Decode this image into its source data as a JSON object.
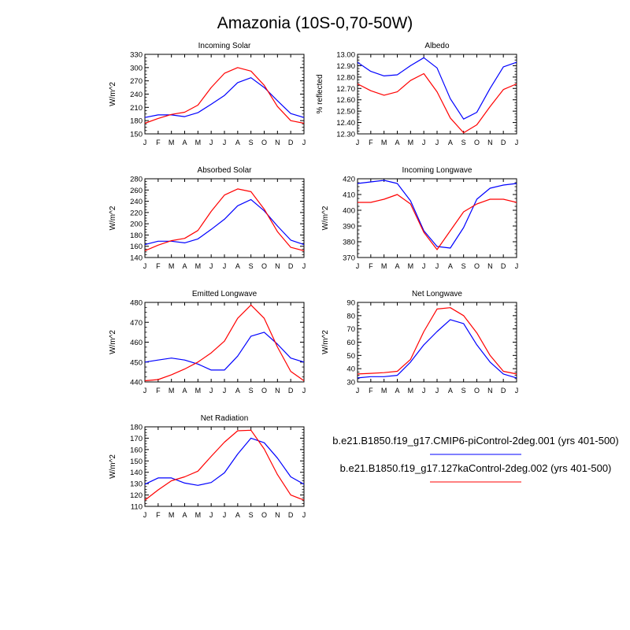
{
  "figure": {
    "title": "Amazonia (10S-0,70-50W)"
  },
  "colors": {
    "control": "#0000ff",
    "experiment": "#ff0000"
  },
  "legend": [
    {
      "label": "b.e21.B1850.f19_g17.CMIP6-piControl-2deg.001 (yrs 401-500)",
      "color_key": "control"
    },
    {
      "label": "b.e21.B1850.f19_g17.127kaControl-2deg.002 (yrs 401-500)",
      "color_key": "experiment"
    }
  ],
  "chart_data": [
    {
      "type": "line",
      "title": "Incoming Solar",
      "ylabel": "W/m^2",
      "categories": [
        "J",
        "F",
        "M",
        "A",
        "M",
        "J",
        "J",
        "A",
        "S",
        "O",
        "N",
        "D",
        "J"
      ],
      "ylim": [
        150,
        330
      ],
      "yticks": [
        "150",
        "180",
        "210",
        "240",
        "270",
        "300",
        "330"
      ],
      "series": [
        {
          "name": "control",
          "values": [
            187,
            193,
            193,
            189,
            198,
            217,
            237,
            266,
            277,
            255,
            225,
            196,
            187
          ]
        },
        {
          "name": "experiment",
          "values": [
            174,
            185,
            194,
            199,
            215,
            255,
            287,
            300,
            292,
            260,
            212,
            180,
            174
          ]
        }
      ]
    },
    {
      "type": "line",
      "title": "Albedo",
      "ylabel": "% reflected",
      "categories": [
        "J",
        "F",
        "M",
        "A",
        "M",
        "J",
        "J",
        "A",
        "S",
        "O",
        "N",
        "D",
        "J"
      ],
      "ylim": [
        12.3,
        13.0
      ],
      "yticks": [
        "12.30",
        "12.40",
        "12.50",
        "12.60",
        "12.70",
        "12.80",
        "12.90",
        "13.00"
      ],
      "series": [
        {
          "name": "control",
          "values": [
            12.93,
            12.85,
            12.81,
            12.82,
            12.9,
            12.97,
            12.88,
            12.61,
            12.43,
            12.49,
            12.7,
            12.89,
            12.93
          ]
        },
        {
          "name": "experiment",
          "values": [
            12.74,
            12.68,
            12.64,
            12.67,
            12.77,
            12.83,
            12.67,
            12.44,
            12.31,
            12.38,
            12.54,
            12.69,
            12.74
          ]
        }
      ]
    },
    {
      "type": "line",
      "title": "Absorbed Solar",
      "ylabel": "W/m^2",
      "categories": [
        "J",
        "F",
        "M",
        "A",
        "M",
        "J",
        "J",
        "A",
        "S",
        "O",
        "N",
        "D",
        "J"
      ],
      "ylim": [
        140,
        280
      ],
      "yticks": [
        "140",
        "160",
        "180",
        "200",
        "220",
        "240",
        "260",
        "280"
      ],
      "series": [
        {
          "name": "control",
          "values": [
            163,
            169,
            169,
            166,
            173,
            190,
            208,
            232,
            243,
            223,
            196,
            171,
            163
          ]
        },
        {
          "name": "experiment",
          "values": [
            152,
            162,
            170,
            174,
            188,
            222,
            251,
            262,
            257,
            226,
            186,
            158,
            152
          ]
        }
      ]
    },
    {
      "type": "line",
      "title": "Incoming Longwave",
      "ylabel": "W/m^2",
      "categories": [
        "J",
        "F",
        "M",
        "A",
        "M",
        "J",
        "J",
        "A",
        "S",
        "O",
        "N",
        "D",
        "J"
      ],
      "ylim": [
        370,
        420
      ],
      "yticks": [
        "370",
        "380",
        "390",
        "400",
        "410",
        "420"
      ],
      "series": [
        {
          "name": "control",
          "values": [
            417,
            418,
            419,
            417,
            406,
            387,
            377,
            376,
            389,
            407,
            414,
            416,
            417
          ]
        },
        {
          "name": "experiment",
          "values": [
            405,
            405,
            407,
            410,
            404,
            386,
            375,
            387,
            399,
            404,
            407,
            407,
            405
          ]
        }
      ]
    },
    {
      "type": "line",
      "title": "Emitted Longwave",
      "ylabel": "W/m^2",
      "categories": [
        "J",
        "F",
        "M",
        "A",
        "M",
        "J",
        "J",
        "A",
        "S",
        "O",
        "N",
        "D",
        "J"
      ],
      "ylim": [
        440,
        480
      ],
      "yticks": [
        "440",
        "450",
        "460",
        "470",
        "480"
      ],
      "series": [
        {
          "name": "control",
          "values": [
            450,
            451,
            452,
            451,
            449,
            446,
            446,
            453,
            463,
            465,
            459,
            452,
            450
          ]
        },
        {
          "name": "experiment",
          "values": [
            440.6,
            441.2,
            443.6,
            446.5,
            450.0,
            454.6,
            460.5,
            472.0,
            478.7,
            472.0,
            457.6,
            445.3,
            440.6
          ]
        }
      ]
    },
    {
      "type": "line",
      "title": "Net Longwave",
      "ylabel": "W/m^2",
      "categories": [
        "J",
        "F",
        "M",
        "A",
        "M",
        "J",
        "J",
        "A",
        "S",
        "O",
        "N",
        "D",
        "J"
      ],
      "ylim": [
        30,
        90
      ],
      "yticks": [
        "30",
        "40",
        "50",
        "60",
        "70",
        "80",
        "90"
      ],
      "series": [
        {
          "name": "control",
          "values": [
            33,
            34,
            34,
            35,
            45,
            58,
            68,
            77,
            74,
            58,
            45,
            36,
            33
          ]
        },
        {
          "name": "experiment",
          "values": [
            36,
            36.5,
            37,
            38,
            47,
            68,
            85,
            86,
            80,
            67,
            50,
            38,
            36
          ]
        }
      ]
    },
    {
      "type": "line",
      "title": "Net Radiation",
      "ylabel": "W/m^2",
      "categories": [
        "J",
        "F",
        "M",
        "A",
        "M",
        "J",
        "J",
        "A",
        "S",
        "O",
        "N",
        "D",
        "J"
      ],
      "ylim": [
        110,
        180
      ],
      "yticks": [
        "110",
        "120",
        "130",
        "140",
        "150",
        "160",
        "170",
        "180"
      ],
      "series": [
        {
          "name": "control",
          "values": [
            129.5,
            135.0,
            135.0,
            130.5,
            128.5,
            131.0,
            139.5,
            156.0,
            170.0,
            166.0,
            152.5,
            136.0,
            129.5
          ]
        },
        {
          "name": "experiment",
          "values": [
            115.5,
            124.5,
            132.5,
            136.0,
            141.0,
            154.0,
            166.5,
            176.5,
            177.0,
            160.5,
            138.0,
            120.0,
            115.5
          ]
        }
      ]
    }
  ]
}
